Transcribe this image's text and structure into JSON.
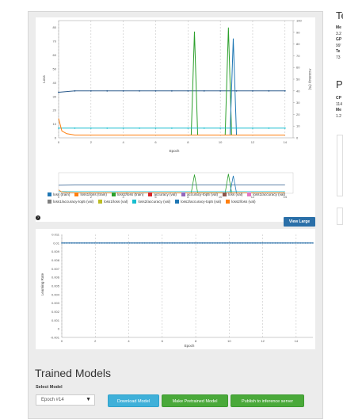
{
  "main_chart": {
    "x_label": "Epoch",
    "y_label_left": "Loss",
    "y_label_right": "Accuracy (%)",
    "x_ticks": [
      "0",
      "2",
      "4",
      "6",
      "8",
      "10",
      "12",
      "14"
    ],
    "y_ticks_left": [
      "0",
      "10",
      "20",
      "30",
      "40",
      "50",
      "60",
      "70",
      "80"
    ],
    "y_ticks_right": [
      "0",
      "10",
      "20",
      "30",
      "40",
      "50",
      "60",
      "70",
      "80",
      "90",
      "100"
    ]
  },
  "legend": [
    {
      "label": "loss (train)",
      "color": "#1f77b4"
    },
    {
      "label": "loss1/loss (train)",
      "color": "#ff7f0e"
    },
    {
      "label": "loss2/loss (train)",
      "color": "#2ca02c"
    },
    {
      "label": "accuracy (val)",
      "color": "#d62728"
    },
    {
      "label": "accuracy-top5 (val)",
      "color": "#9467bd"
    },
    {
      "label": "loss (val)",
      "color": "#8c564b"
    },
    {
      "label": "loss1/accuracy (val)",
      "color": "#e377c2"
    },
    {
      "label": "loss1/accuracy-top5 (val)",
      "color": "#7f7f7f"
    },
    {
      "label": "loss1/loss (val)",
      "color": "#bcbd22"
    },
    {
      "label": "loss2/accuracy (val)",
      "color": "#17becf"
    },
    {
      "label": "loss2/accuracy-top5 (val)",
      "color": "#1f77b4"
    },
    {
      "label": "loss2/loss (val)",
      "color": "#ff7f0e"
    }
  ],
  "view_large_label": "View Large",
  "lr_chart": {
    "x_label": "Epoch",
    "y_label": "Learning Rate",
    "x_ticks": [
      "0",
      "2",
      "4",
      "6",
      "8",
      "10",
      "12",
      "14"
    ],
    "y_ticks": [
      "-0.001",
      "0",
      "0.001",
      "0.002",
      "0.003",
      "0.004",
      "0.005",
      "0.006",
      "0.007",
      "0.008",
      "0.009",
      "0.01",
      "0.011"
    ]
  },
  "chart_data": [
    {
      "type": "line",
      "xlabel": "Epoch",
      "ylabel": "Loss",
      "y2label": "Accuracy (%)",
      "xlim": [
        0,
        14.5
      ],
      "ylim": [
        0,
        85
      ],
      "y2lim": [
        0,
        100
      ],
      "series": [
        {
          "name": "loss (train)",
          "x": [
            0,
            1,
            2,
            3,
            4,
            5,
            6,
            7,
            8,
            9,
            10,
            11,
            12,
            13,
            14
          ],
          "values": [
            33,
            34,
            34,
            34,
            34,
            34,
            34,
            34,
            34,
            34,
            34,
            34,
            34,
            34,
            34
          ]
        },
        {
          "name": "loss2/loss (train)",
          "x": [
            8.2,
            8.4,
            8.6,
            10.3,
            10.5,
            10.7
          ],
          "values": [
            2,
            77,
            2,
            2,
            80,
            2
          ]
        },
        {
          "name": "loss2/accuracy-top5 (val)",
          "x": [
            10.6,
            10.8,
            11.0
          ],
          "values": [
            2,
            72,
            2
          ]
        },
        {
          "name": "loss2/accuracy (val)",
          "x": [
            0,
            1,
            2,
            3,
            4,
            5,
            6,
            7,
            8,
            9,
            10,
            11,
            12,
            13,
            14
          ],
          "values": [
            7,
            7,
            7,
            7,
            7,
            7,
            7,
            7,
            7,
            7,
            7,
            7,
            7,
            7,
            7
          ]
        },
        {
          "name": "loss1/loss (train)",
          "x": [
            0,
            0.2,
            0.5,
            1,
            14
          ],
          "values": [
            14,
            5,
            3,
            2,
            2
          ]
        }
      ]
    },
    {
      "type": "line",
      "xlabel": "Epoch",
      "ylabel": "Learning Rate",
      "xlim": [
        0,
        15
      ],
      "ylim": [
        -0.001,
        0.011
      ],
      "series": [
        {
          "name": "",
          "x": [
            0,
            15
          ],
          "values": [
            0.01,
            0.01
          ]
        }
      ]
    }
  ],
  "trained_models": {
    "title": "Trained Models",
    "select_label": "Select Model",
    "selected_value": "Epoch #14",
    "download_label": "Download Model",
    "pretrained_label": "Make Pretrained Model",
    "publish_label": "Publish to inference server"
  },
  "sidebar": {
    "heading1": "Te",
    "lines1": [
      "Me",
      "3.2",
      "GP",
      "99'",
      "Te",
      "73"
    ],
    "heading2": "Pu",
    "lines2": [
      "CP",
      "114",
      "Me",
      "1.2"
    ]
  }
}
